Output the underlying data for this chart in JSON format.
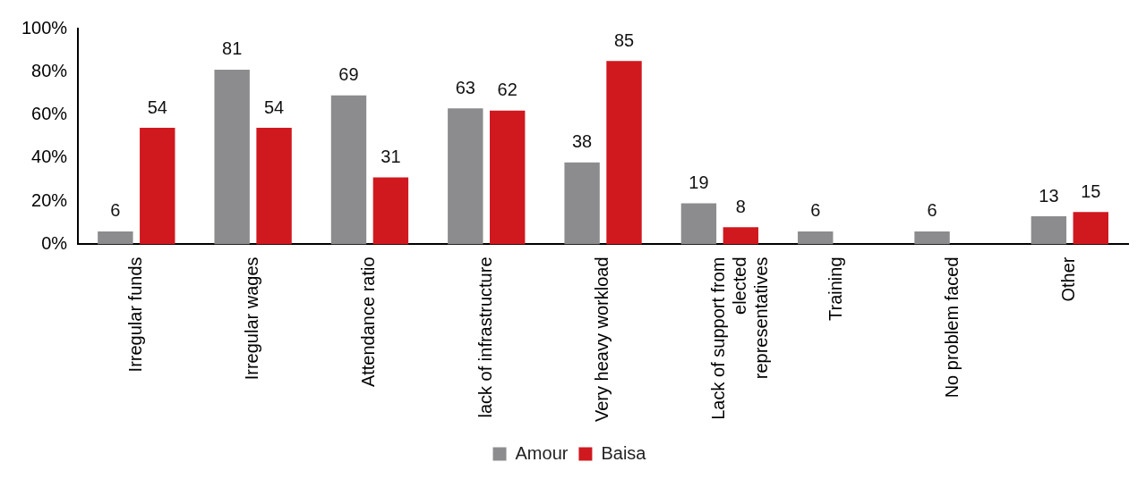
{
  "chart_data": {
    "type": "bar",
    "categories": [
      "Irregular funds",
      "Irregular wages",
      "Attendance ratio",
      "lack of infrastructure",
      "Very heavy workload",
      "Lack of support from elected representatives",
      "Training",
      "No problem faced",
      "Other"
    ],
    "series": [
      {
        "name": "Amour",
        "color": "#8c8c8e",
        "values": [
          6,
          81,
          69,
          63,
          38,
          19,
          6,
          6,
          13
        ]
      },
      {
        "name": "Baisa",
        "color": "#d0181f",
        "values": [
          54,
          54,
          31,
          62,
          85,
          8,
          null,
          null,
          15
        ]
      }
    ],
    "ylim": [
      0,
      100
    ],
    "yticks": [
      {
        "value": 0,
        "label": "0%"
      },
      {
        "value": 20,
        "label": "20%"
      },
      {
        "value": 40,
        "label": "40%"
      },
      {
        "value": 60,
        "label": "60%"
      },
      {
        "value": 80,
        "label": "80%"
      },
      {
        "value": 100,
        "label": "100%"
      }
    ],
    "data_labels": true,
    "legend": "bottom"
  }
}
